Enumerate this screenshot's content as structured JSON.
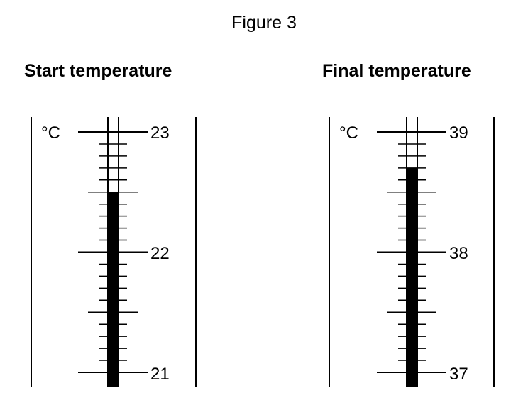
{
  "figure_title": "Figure 3",
  "thermometers": [
    {
      "id": "start",
      "title": "Start temperature",
      "unit": "°C",
      "scale_labels": [
        "23",
        "22",
        "21"
      ],
      "scale_min": 21,
      "scale_max": 23,
      "reading": 22.5
    },
    {
      "id": "final",
      "title": "Final temperature",
      "unit": "°C",
      "scale_labels": [
        "39",
        "38",
        "37"
      ],
      "scale_min": 37,
      "scale_max": 39,
      "reading": 38.7
    }
  ]
}
